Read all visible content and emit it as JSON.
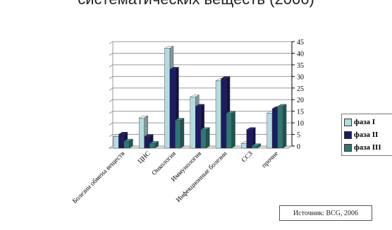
{
  "header": {
    "title": "систематических веществ (2006)"
  },
  "source_note": "Источник: BCG, 2006",
  "colors": {
    "phase1": "#b3dcde",
    "phase2": "#1c1b64",
    "phase3": "#2f7773",
    "grid": "#9a9a9a",
    "axis": "#000000"
  },
  "chart_data": {
    "type": "bar",
    "title": "",
    "xlabel": "",
    "ylabel": "",
    "categories": [
      "Болезни обмена веществ",
      "ЦНС",
      "Онкология",
      "Иммунология",
      "Инфекционные болезни",
      "ССЗ",
      "прочие"
    ],
    "series": [
      {
        "name": "фаза I",
        "values": [
          5,
          13,
          43,
          22,
          29,
          2,
          15
        ]
      },
      {
        "name": "фаза II",
        "values": [
          6,
          5,
          34,
          18,
          30,
          8,
          17
        ]
      },
      {
        "name": "фаза III",
        "values": [
          3,
          2,
          12,
          8,
          15,
          1,
          18
        ]
      }
    ],
    "ylim": [
      0,
      45
    ],
    "yticks": [
      0,
      5,
      10,
      15,
      20,
      25,
      30,
      35,
      40,
      45
    ],
    "y_axis_side": "right",
    "grid": true,
    "legend_position": "right",
    "bar_style": "3d"
  }
}
